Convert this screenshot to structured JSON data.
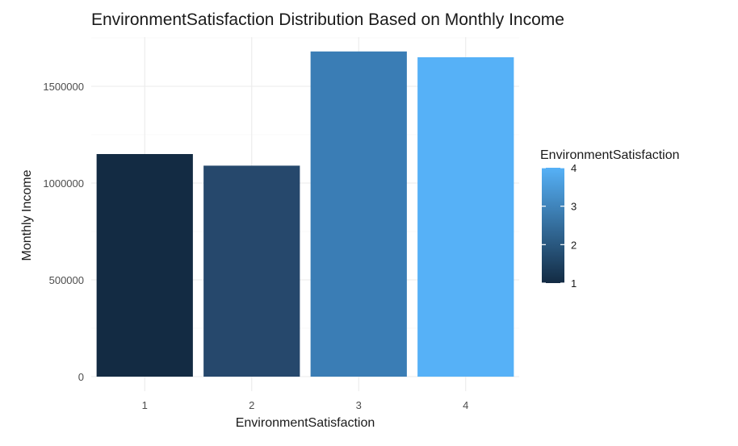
{
  "chart_data": {
    "type": "bar",
    "title": "EnvironmentSatisfaction Distribution Based on Monthly Income",
    "xlabel": "EnvironmentSatisfaction",
    "ylabel": "Monthly Income",
    "categories": [
      "1",
      "2",
      "3",
      "4"
    ],
    "values": [
      1150000,
      1090000,
      1680000,
      1650000
    ],
    "ylim": [
      0,
      1750000
    ],
    "yticks": [
      0,
      500000,
      1000000,
      1500000
    ],
    "ytick_labels": [
      "0",
      "500000",
      "1000000",
      "1500000"
    ],
    "grid": true,
    "legend": {
      "title": "EnvironmentSatisfaction",
      "placement": "right",
      "type": "colorbar",
      "range": [
        1,
        4
      ],
      "ticks": [
        "1",
        "2",
        "3",
        "4"
      ],
      "low_color": "#132B43",
      "high_color": "#56B1F7"
    },
    "bar_colors": [
      "#132B43",
      "#26486C",
      "#3A7DB5",
      "#56B1F7"
    ]
  }
}
